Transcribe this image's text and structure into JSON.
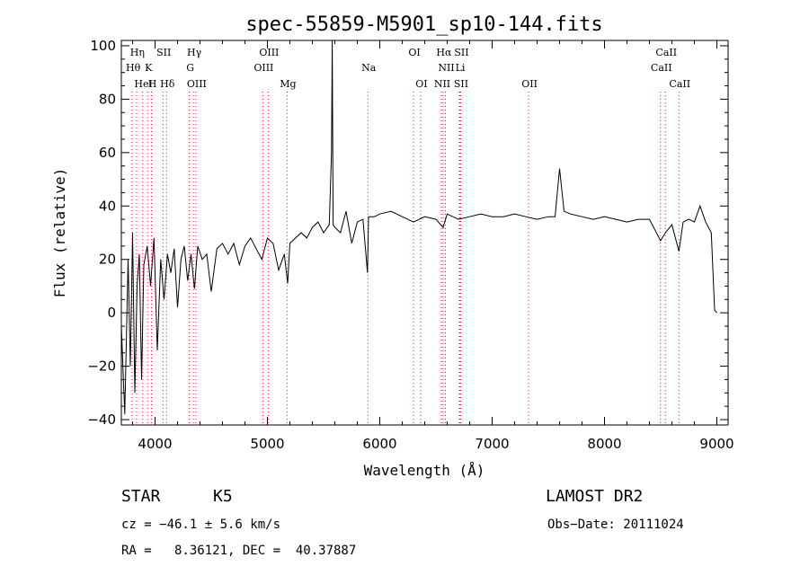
{
  "chart_data": {
    "type": "line",
    "title": "spec-55859-M5901_sp10-144.fits",
    "xlabel": "Wavelength (Å)",
    "ylabel": "Flux (relative)",
    "xlim": [
      3700,
      9100
    ],
    "ylim": [
      -42,
      102
    ],
    "xticks": [
      4000,
      5000,
      6000,
      7000,
      8000,
      9000
    ],
    "yticks": [
      -40,
      -20,
      0,
      20,
      40,
      60,
      80,
      100
    ],
    "grid": false,
    "series": [
      {
        "x": [
          3700,
          3730,
          3760,
          3780,
          3800,
          3820,
          3840,
          3860,
          3880,
          3900,
          3930,
          3960,
          3990,
          4020,
          4050,
          4080,
          4110,
          4140,
          4170,
          4200,
          4230,
          4260,
          4290,
          4320,
          4350,
          4380,
          4420,
          4460,
          4500,
          4550,
          4600,
          4650,
          4700,
          4750,
          4800,
          4850,
          4900,
          4950,
          5000,
          5050,
          5100,
          5150,
          5180,
          5200,
          5250,
          5300,
          5350,
          5400,
          5450,
          5500,
          5550,
          5570,
          5577,
          5585,
          5600,
          5650,
          5700,
          5750,
          5800,
          5850,
          5890,
          5900,
          5950,
          6000,
          6100,
          6200,
          6300,
          6400,
          6500,
          6563,
          6600,
          6700,
          6800,
          6900,
          7000,
          7100,
          7200,
          7300,
          7400,
          7500,
          7560,
          7600,
          7640,
          7700,
          7800,
          7900,
          8000,
          8100,
          8200,
          8300,
          8400,
          8498,
          8542,
          8600,
          8662,
          8700,
          8750,
          8800,
          8850,
          8900,
          8950,
          8980,
          9000
        ],
        "y": [
          -5,
          -38,
          20,
          -20,
          30,
          -30,
          10,
          22,
          -25,
          18,
          25,
          10,
          28,
          -14,
          20,
          5,
          22,
          15,
          24,
          2,
          20,
          25,
          12,
          22,
          9,
          25,
          20,
          22,
          8,
          24,
          26,
          22,
          26,
          18,
          25,
          28,
          24,
          20,
          28,
          26,
          16,
          22,
          11,
          26,
          28,
          30,
          28,
          32,
          34,
          30,
          33,
          60,
          102,
          33,
          32,
          30,
          38,
          26,
          34,
          35,
          15,
          36,
          36,
          37,
          38,
          36,
          34,
          36,
          35,
          32,
          37,
          35,
          36,
          37,
          36,
          36,
          37,
          36,
          35,
          36,
          36,
          54,
          38,
          37,
          36,
          35,
          36,
          35,
          34,
          35,
          35,
          27,
          30,
          33,
          23,
          34,
          35,
          34,
          40,
          34,
          30,
          1,
          0
        ]
      }
    ],
    "lines": [
      {
        "label": "Hη",
        "wave": 3835,
        "row": 0
      },
      {
        "label": "Hθ",
        "wave": 3797,
        "row": 1
      },
      {
        "label": "K",
        "wave": 3934,
        "row": 1
      },
      {
        "label": "HeI",
        "wave": 3889,
        "row": 2
      },
      {
        "label": "H",
        "wave": 3968,
        "row": 2
      },
      {
        "label": "SII",
        "wave": 4070,
        "row": 0
      },
      {
        "label": "Hδ",
        "wave": 4102,
        "row": 2
      },
      {
        "label": "Hγ",
        "wave": 4341,
        "row": 0
      },
      {
        "label": "G",
        "wave": 4305,
        "row": 1
      },
      {
        "label": "OIII",
        "wave": 4363,
        "row": 2
      },
      {
        "label": "OIII",
        "wave": 5007,
        "row": 0
      },
      {
        "label": "OIII",
        "wave": 4959,
        "row": 1
      },
      {
        "label": "Mg",
        "wave": 5175,
        "row": 2
      },
      {
        "label": "Na",
        "wave": 5894,
        "row": 1
      },
      {
        "label": "OI",
        "wave": 6300,
        "row": 0
      },
      {
        "label": "OI",
        "wave": 6363,
        "row": 2
      },
      {
        "label": "Hα",
        "wave": 6563,
        "row": 0
      },
      {
        "label": "SII",
        "wave": 6720,
        "row": 0
      },
      {
        "label": "NII",
        "wave": 6584,
        "row": 1
      },
      {
        "label": "Li",
        "wave": 6708,
        "row": 1
      },
      {
        "label": "NII",
        "wave": 6548,
        "row": 2
      },
      {
        "label": "SII",
        "wave": 6716,
        "row": 2
      },
      {
        "label": "OII",
        "wave": 7325,
        "row": 2
      },
      {
        "label": "CaII",
        "wave": 8542,
        "row": 0
      },
      {
        "label": "CaII",
        "wave": 8498,
        "row": 1
      },
      {
        "label": "CaII",
        "wave": 8662,
        "row": 2
      }
    ],
    "colors": {
      "spectrum": "#000000",
      "line_markers": "#cc2222",
      "axes": "#000000"
    }
  },
  "info": {
    "class": "STAR",
    "subclass": "K5",
    "survey": "LAMOST DR2",
    "cz": "cz = −46.1 ± 5.6 km/s",
    "obsdate": "Obs−Date: 20111024",
    "coords": "RA =   8.36121, DEC =  40.37887"
  }
}
